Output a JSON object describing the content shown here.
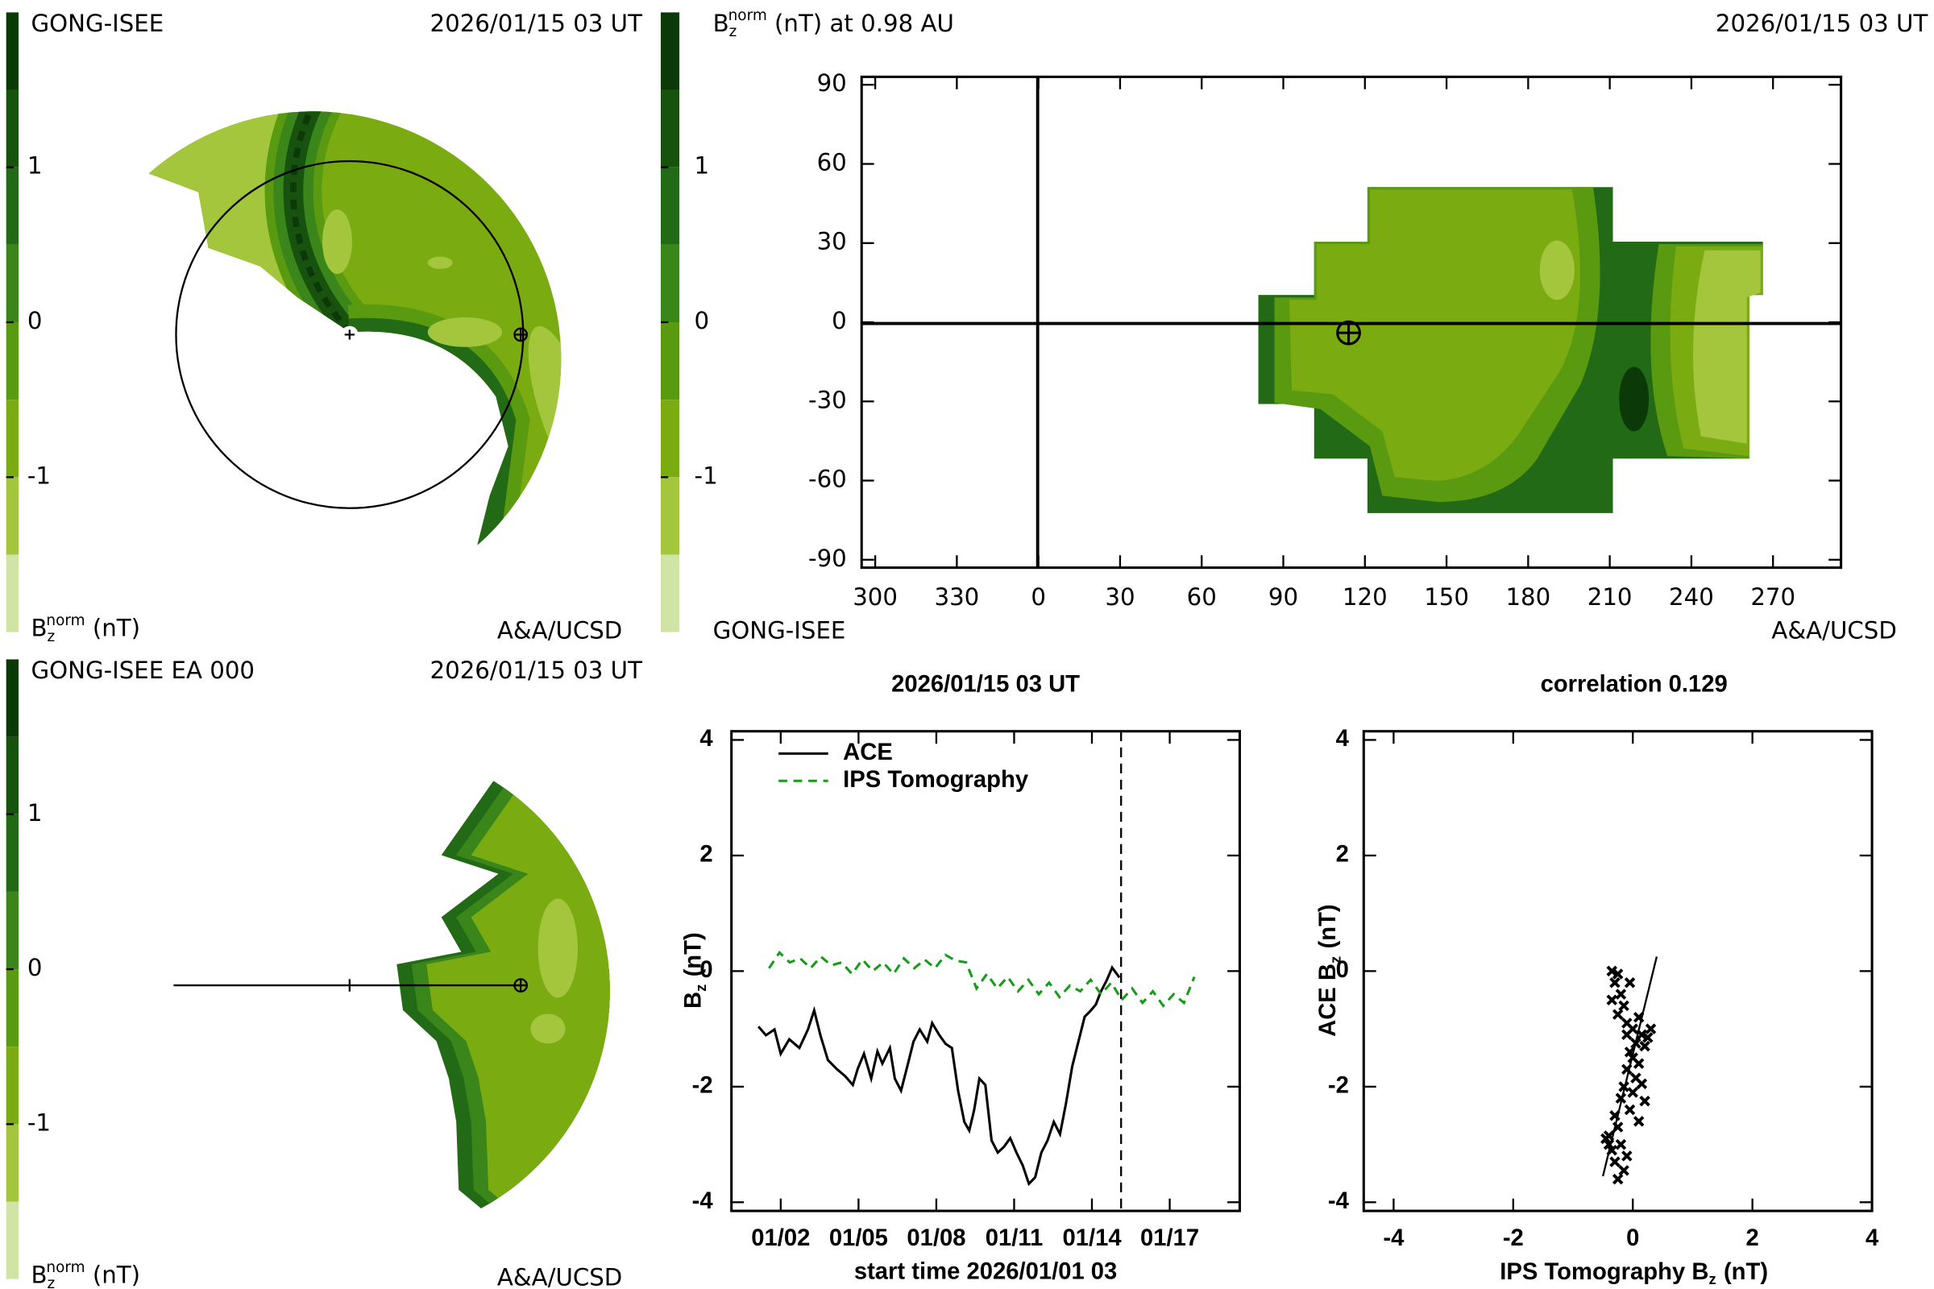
{
  "chart_data": [
    {
      "type": "polar-contour",
      "label": "GONG-ISEE",
      "date": "2026/01/15 03 UT",
      "credit": "A&A/UCSD",
      "colorbar": {
        "label": {
          "base": "B",
          "sub": "z",
          "sup": "norm",
          "rest": "(nT)"
        },
        "ylim": [
          -2,
          2
        ],
        "yticks": [
          -1,
          0,
          1
        ],
        "colors": [
          "#0b3a08",
          "#17530f",
          "#226a15",
          "#3a861a",
          "#5a9a10",
          "#7aac12",
          "#a3c63c",
          "#d0e4a6"
        ]
      }
    },
    {
      "type": "contour-map",
      "title": {
        "base": "B",
        "sub": "z",
        "sup": "norm",
        "rest": "(nT) at 0.98 AU"
      },
      "date": "2026/01/15 03 UT",
      "label": "GONG-ISEE",
      "credit": "A&A/UCSD",
      "xlim": [
        -65,
        295
      ],
      "xticks": [
        {
          "value": -60,
          "label": "300"
        },
        {
          "value": -30,
          "label": "330"
        },
        0,
        30,
        60,
        90,
        120,
        150,
        180,
        210,
        240,
        270
      ],
      "ylim": [
        -93,
        93
      ],
      "yticks": [
        -90,
        -60,
        -30,
        0,
        30,
        60,
        90
      ],
      "earth": [
        114,
        -4
      ],
      "colorbar": {
        "label": {
          "base": "B",
          "sub": "z",
          "sup": "norm",
          "rest": "(nT)"
        },
        "ylim": [
          -2,
          2
        ],
        "yticks": [
          -1,
          0,
          1
        ],
        "colors": [
          "#0b3a08",
          "#17530f",
          "#226a15",
          "#3a861a",
          "#5a9a10",
          "#7aac12",
          "#a3c63c",
          "#d0e4a6"
        ]
      }
    },
    {
      "type": "polar-contour",
      "label": "GONG-ISEE EA 000",
      "date": "2026/01/15 03 UT",
      "credit": "A&A/UCSD",
      "colorbar": {
        "label": {
          "base": "B",
          "sub": "z",
          "sup": "norm",
          "rest": "(nT)"
        },
        "ylim": [
          -2,
          2
        ],
        "yticks": [
          -1,
          0,
          1
        ],
        "colors": [
          "#0b3a08",
          "#17530f",
          "#226a15",
          "#3a861a",
          "#5a9a10",
          "#7aac12",
          "#a3c63c",
          "#d0e4a6"
        ]
      }
    },
    {
      "type": "line",
      "title": "2026/01/15 03 UT",
      "x_label": "start time 2026/01/01 03",
      "y_label": {
        "base": "B",
        "sub": "z",
        "rest": "(nT)"
      },
      "xlim": [
        0.1,
        19.7
      ],
      "xticks": [
        {
          "value": 2,
          "label": "01/02"
        },
        {
          "value": 5,
          "label": "01/05"
        },
        {
          "value": 8,
          "label": "01/08"
        },
        {
          "value": 11,
          "label": "01/11"
        },
        {
          "value": 14,
          "label": "01/14"
        },
        {
          "value": 17,
          "label": "01/17"
        }
      ],
      "ylim": [
        -4.15,
        4.15
      ],
      "yticks": [
        -4,
        -2,
        0,
        2,
        4
      ],
      "vline": 15.125,
      "series": [
        {
          "name": "ACE",
          "color": "#000000",
          "linestyle": "solid",
          "x": [
            1.14,
            1.43,
            1.76,
            2.0,
            2.33,
            2.72,
            3.05,
            3.29,
            3.53,
            3.82,
            4.15,
            4.49,
            4.78,
            4.97,
            5.21,
            5.49,
            5.73,
            5.92,
            6.21,
            6.4,
            6.64,
            6.88,
            7.12,
            7.36,
            7.65,
            7.84,
            8.12,
            8.36,
            8.6,
            8.84,
            9.08,
            9.27,
            9.46,
            9.66,
            9.89,
            10.13,
            10.37,
            10.61,
            10.85,
            11.09,
            11.33,
            11.57,
            11.81,
            12.05,
            12.29,
            12.53,
            12.77,
            13.0,
            13.24,
            13.48,
            13.72,
            13.96,
            14.15,
            14.34,
            14.58,
            14.78,
            15.06
          ],
          "values": [
            -0.96,
            -1.11,
            -1.01,
            -1.43,
            -1.18,
            -1.33,
            -1.01,
            -0.68,
            -1.11,
            -1.54,
            -1.69,
            -1.82,
            -1.97,
            -1.69,
            -1.43,
            -1.86,
            -1.39,
            -1.6,
            -1.33,
            -1.86,
            -2.07,
            -1.65,
            -1.22,
            -1.01,
            -1.22,
            -0.9,
            -1.11,
            -1.26,
            -1.33,
            -2.07,
            -2.61,
            -2.76,
            -2.4,
            -1.86,
            -1.97,
            -2.93,
            -3.14,
            -3.04,
            -2.89,
            -3.14,
            -3.36,
            -3.68,
            -3.57,
            -3.14,
            -2.93,
            -2.61,
            -2.82,
            -2.29,
            -1.65,
            -1.22,
            -0.79,
            -0.68,
            -0.58,
            -0.36,
            -0.15,
            0.06,
            -0.11
          ]
        },
        {
          "name": "IPS Tomography",
          "color": "#1a9a1a",
          "linestyle": "dashed",
          "x": [
            1.55,
            1.95,
            2.35,
            2.75,
            3.15,
            3.55,
            3.95,
            4.35,
            4.75,
            5.15,
            5.55,
            5.95,
            6.35,
            6.75,
            7.15,
            7.55,
            7.95,
            8.35,
            8.75,
            9.15,
            9.55,
            9.95,
            10.35,
            10.75,
            11.15,
            11.55,
            11.95,
            12.35,
            12.75,
            13.15,
            13.55,
            13.95,
            14.35,
            14.75,
            15.15,
            15.55,
            15.95,
            16.35,
            16.75,
            17.15,
            17.55,
            17.95
          ],
          "values": [
            0.05,
            0.32,
            0.15,
            0.22,
            0.05,
            0.25,
            0.1,
            0.15,
            -0.05,
            0.2,
            0.0,
            0.15,
            -0.05,
            0.22,
            0.05,
            0.2,
            0.05,
            0.28,
            0.18,
            0.15,
            -0.3,
            -0.05,
            -0.3,
            -0.1,
            -0.35,
            -0.15,
            -0.4,
            -0.2,
            -0.45,
            -0.25,
            -0.35,
            -0.15,
            -0.4,
            -0.2,
            -0.5,
            -0.3,
            -0.55,
            -0.35,
            -0.6,
            -0.4,
            -0.55,
            -0.1
          ]
        }
      ]
    },
    {
      "type": "scatter",
      "title": "correlation 0.129",
      "x_label": {
        "base": "IPS Tomography B",
        "sub": "z",
        "rest": "(nT)"
      },
      "y_label": {
        "base": "ACE B",
        "sub": "z",
        "rest": "(nT)"
      },
      "xlim": [
        -4.5,
        4
      ],
      "xticks": [
        -4,
        -2,
        0,
        2,
        4
      ],
      "ylim": [
        -4.15,
        4.15
      ],
      "yticks": [
        -4,
        -2,
        0,
        2,
        4
      ],
      "color": "#000000",
      "x": [
        -0.35,
        -0.25,
        -0.3,
        -0.2,
        -0.35,
        -0.15,
        -0.25,
        -0.1,
        0.0,
        0.1,
        0.15,
        0.05,
        -0.05,
        0.2,
        0.0,
        -0.1,
        0.1,
        0.05,
        -0.15,
        0.15,
        -0.2,
        0.0,
        0.2,
        -0.3,
        -0.05,
        -0.25,
        0.1,
        -0.4,
        -0.2,
        -0.35,
        -0.1,
        -0.3,
        -0.15,
        -0.25,
        -0.4,
        -0.45,
        0.25,
        0.3,
        -0.05,
        -0.1
      ],
      "values": [
        0.0,
        -0.05,
        -0.2,
        -0.4,
        -0.5,
        -0.6,
        -0.75,
        -0.9,
        -1.0,
        -0.8,
        -1.1,
        -1.25,
        -1.4,
        -1.3,
        -1.5,
        -1.7,
        -1.6,
        -1.85,
        -2.0,
        -1.95,
        -2.2,
        -2.1,
        -2.25,
        -2.5,
        -2.4,
        -2.7,
        -2.6,
        -2.85,
        -3.0,
        -3.1,
        -3.2,
        -3.3,
        -3.45,
        -3.6,
        -3.0,
        -2.9,
        -1.15,
        -1.0,
        -0.2,
        -1.1
      ],
      "fit": {
        "x": [
          -0.5,
          0.4
        ],
        "values": [
          -3.55,
          0.25
        ]
      }
    }
  ]
}
